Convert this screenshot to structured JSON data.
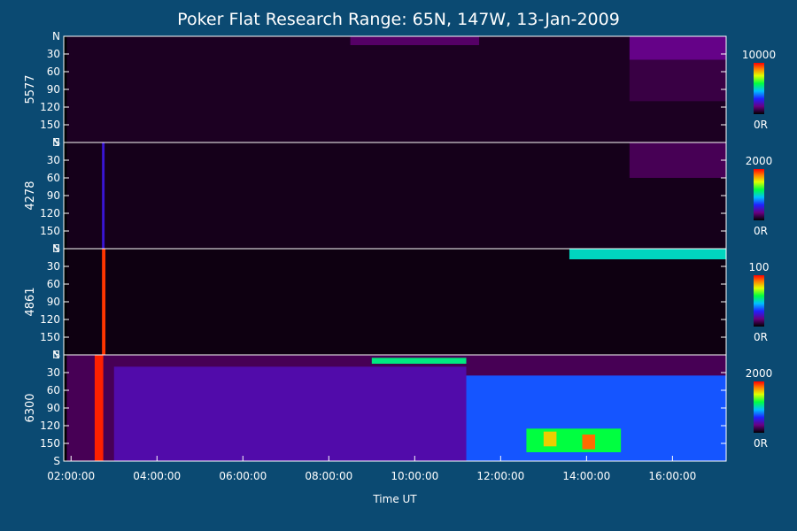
{
  "chart_data": {
    "type": "heatmap",
    "title": "Poker Flat Research Range: 65N, 147W, 13-Jan-2009",
    "xlabel": "Time UT",
    "x_ticks": [
      "02:00:00",
      "04:00:00",
      "06:00:00",
      "08:00:00",
      "10:00:00",
      "12:00:00",
      "14:00:00",
      "16:00:00"
    ],
    "x_tick_hours": [
      2,
      4,
      6,
      8,
      10,
      12,
      14,
      16
    ],
    "xlim_hours": [
      1.83,
      17.25
    ],
    "y_ticks": [
      "N",
      "30",
      "60",
      "90",
      "120",
      "150",
      "S"
    ],
    "y_tick_values": [
      0,
      30,
      60,
      90,
      120,
      150,
      180
    ],
    "ylim": [
      0,
      180
    ],
    "panels": [
      {
        "name": "5577",
        "colorbar": {
          "max_label": "10000",
          "min_label": "0R",
          "max": 10000,
          "min": 0
        },
        "features": [
          {
            "t0": 1.9,
            "t1": 17.25,
            "a0": 0,
            "a1": 180,
            "level": 0.04
          },
          {
            "t0": 8.5,
            "t1": 11.5,
            "a0": 0,
            "a1": 15,
            "level": 0.12
          },
          {
            "t0": 15.0,
            "t1": 17.25,
            "a0": 0,
            "a1": 40,
            "level": 0.16
          },
          {
            "t0": 15.0,
            "t1": 17.25,
            "a0": 40,
            "a1": 110,
            "level": 0.08
          }
        ]
      },
      {
        "name": "4278",
        "colorbar": {
          "max_label": "2000",
          "min_label": "0R",
          "max": 2000,
          "min": 0
        },
        "features": [
          {
            "t0": 1.9,
            "t1": 17.25,
            "a0": 0,
            "a1": 180,
            "level": 0.03
          },
          {
            "t0": 2.72,
            "t1": 2.78,
            "a0": 0,
            "a1": 180,
            "level": 0.25
          },
          {
            "t0": 15.0,
            "t1": 17.25,
            "a0": 0,
            "a1": 60,
            "level": 0.1
          }
        ]
      },
      {
        "name": "4861",
        "colorbar": {
          "max_label": "100",
          "min_label": "0R",
          "max": 100,
          "min": 0
        },
        "features": [
          {
            "t0": 1.9,
            "t1": 17.25,
            "a0": 0,
            "a1": 180,
            "level": 0.02
          },
          {
            "t0": 2.72,
            "t1": 2.8,
            "a0": 0,
            "a1": 180,
            "level": 0.95
          },
          {
            "t0": 13.6,
            "t1": 17.25,
            "a0": 0,
            "a1": 18,
            "level": 0.5
          }
        ]
      },
      {
        "name": "6300",
        "colorbar": {
          "max_label": "2000",
          "min_label": "0R",
          "max": 2000,
          "min": 0
        },
        "features": [
          {
            "t0": 1.9,
            "t1": 17.25,
            "a0": 0,
            "a1": 180,
            "level": 0.1
          },
          {
            "t0": 3.0,
            "t1": 11.2,
            "a0": 20,
            "a1": 180,
            "level": 0.2
          },
          {
            "t0": 2.55,
            "t1": 2.75,
            "a0": 0,
            "a1": 180,
            "level": 0.97
          },
          {
            "t0": 9.0,
            "t1": 11.2,
            "a0": 5,
            "a1": 15,
            "level": 0.55
          },
          {
            "t0": 11.2,
            "t1": 17.25,
            "a0": 35,
            "a1": 180,
            "level": 0.35
          },
          {
            "t0": 12.6,
            "t1": 14.8,
            "a0": 125,
            "a1": 165,
            "level": 0.6
          },
          {
            "t0": 13.0,
            "t1": 13.3,
            "a0": 130,
            "a1": 155,
            "level": 0.8
          },
          {
            "t0": 13.9,
            "t1": 14.2,
            "a0": 135,
            "a1": 160,
            "level": 0.9
          }
        ]
      }
    ]
  }
}
